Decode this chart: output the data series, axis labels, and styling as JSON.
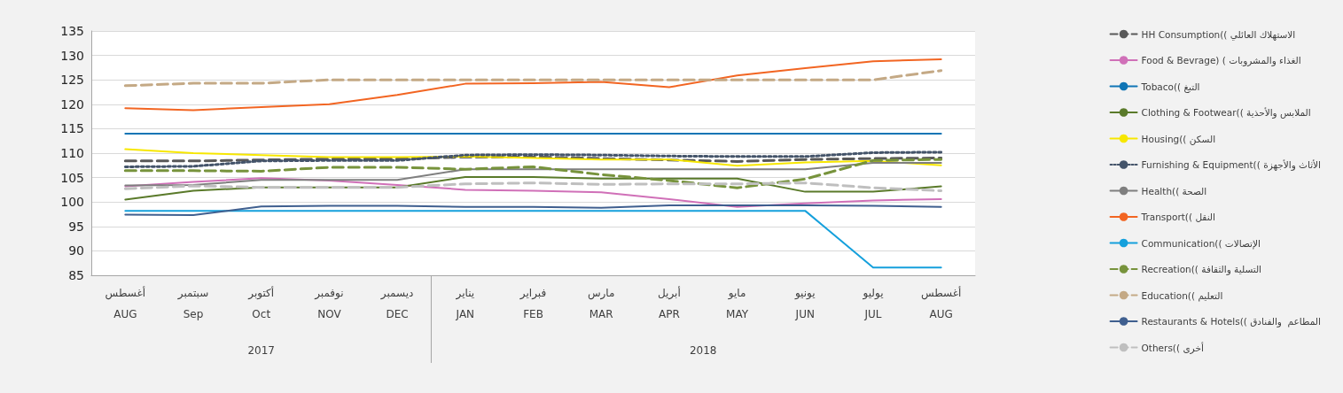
{
  "chart_data": {
    "type": "line",
    "categories": [
      "أغسطس\nAUG",
      "سبتمبر\nSep",
      "أكتوبر\nOct",
      "نوفمبر\nNOV",
      "ديسمبر\nDEC",
      "يناير\nJAN",
      "فبراير\nFEB",
      "مارس\nMAR",
      "أبريل\nAPR",
      "مايو\nMAY",
      "يونيو\nJUN",
      "يوليو\nJUL",
      "أغسطس\nAUG"
    ],
    "series": [
      {
        "name": "HH Consumption(( الاستهلاك العائلي",
        "color": "#595959",
        "line_style": "dashed",
        "values": [
          108.4,
          108.4,
          108.6,
          108.8,
          108.8,
          109.2,
          109.2,
          108.9,
          108.6,
          108.3,
          108.7,
          108.9,
          109.0
        ]
      },
      {
        "name": "Food & Bevrage) ( الغذاء والمشروبات",
        "color": "#d070b8",
        "line_style": "solid",
        "values": [
          103.2,
          104.1,
          104.9,
          104.4,
          103.5,
          102.5,
          102.3,
          102.0,
          100.6,
          99.0,
          99.7,
          100.3,
          100.6
        ]
      },
      {
        "name": "Tobaco(( التبغ",
        "color": "#0f75b5",
        "line_style": "solid",
        "values": [
          114,
          114,
          114,
          114,
          114,
          114,
          114,
          114,
          114,
          114,
          114,
          114,
          114
        ]
      },
      {
        "name": "Clothing & Footwear(( الملابس والأحذية",
        "color": "#5a7a2a",
        "line_style": "solid",
        "values": [
          100.5,
          102.3,
          103.0,
          103.0,
          103.0,
          105.1,
          105.1,
          104.8,
          104.8,
          104.8,
          102.1,
          102.1,
          103.2
        ]
      },
      {
        "name": "Housing(( السكن",
        "color": "#f7e700",
        "line_style": "solid",
        "values": [
          110.8,
          110.0,
          109.6,
          109.2,
          109.2,
          109.3,
          109.0,
          108.7,
          108.7,
          107.4,
          108.1,
          108.4,
          107.5
        ]
      },
      {
        "name": "Furnishing & Equipment(( الأثاث والأجهزة",
        "color": "#44546a",
        "line_style": "dotted",
        "values": [
          107.2,
          107.3,
          108.4,
          108.5,
          108.5,
          109.6,
          109.7,
          109.6,
          109.4,
          109.3,
          109.3,
          110.1,
          110.2
        ]
      },
      {
        "name": "Health(( الصحة",
        "color": "#7f7f7f",
        "line_style": "solid",
        "values": [
          103.4,
          103.5,
          104.5,
          104.5,
          104.5,
          106.7,
          106.7,
          106.7,
          106.7,
          106.7,
          106.7,
          108.0,
          108.0
        ]
      },
      {
        "name": "Transport(( النقل",
        "color": "#f26522",
        "line_style": "solid",
        "values": [
          119.2,
          118.8,
          119.4,
          120.0,
          121.9,
          124.2,
          124.3,
          124.6,
          123.5,
          125.9,
          127.4,
          128.8,
          129.2
        ]
      },
      {
        "name": "Communication(( الإتصالات",
        "color": "#15a0dc",
        "line_style": "solid",
        "values": [
          98.2,
          98.2,
          98.2,
          98.2,
          98.2,
          98.2,
          98.2,
          98.2,
          98.2,
          98.2,
          98.2,
          86.6,
          86.6
        ]
      },
      {
        "name": "Recreation(( التسلية والثقافة",
        "color": "#77933c",
        "line_style": "dashed",
        "values": [
          106.4,
          106.4,
          106.3,
          107.1,
          107.1,
          106.7,
          107.2,
          105.6,
          104.4,
          102.9,
          104.7,
          108.5,
          108.7
        ]
      },
      {
        "name": "Education(( التعليم",
        "color": "#c4a985",
        "line_style": "dashed",
        "values": [
          123.8,
          124.3,
          124.3,
          125.0,
          125.0,
          125.0,
          125.0,
          125.0,
          125.0,
          125.0,
          125.0,
          125.0,
          126.9
        ]
      },
      {
        "name": "Restaurants & Hotels(( المطاعم  والفنادق",
        "color": "#3f5f8f",
        "line_style": "solid",
        "values": [
          97.4,
          97.3,
          99.1,
          99.2,
          99.2,
          99.0,
          99.0,
          98.8,
          99.3,
          99.3,
          99.3,
          99.2,
          99.0
        ]
      },
      {
        "name": "Others(( أخرى",
        "color": "#bfbfbf",
        "line_style": "dashed",
        "values": [
          102.7,
          103.3,
          103.0,
          103.0,
          103.0,
          103.7,
          103.9,
          103.6,
          103.7,
          103.7,
          103.9,
          102.9,
          102.3
        ]
      }
    ],
    "ylim": [
      85,
      135
    ],
    "yticks": [
      85,
      90,
      95,
      100,
      105,
      110,
      115,
      120,
      125,
      130,
      135
    ],
    "grid": "y",
    "legend": "right",
    "marker": "none",
    "annotations": [
      "2017",
      "2018"
    ]
  }
}
